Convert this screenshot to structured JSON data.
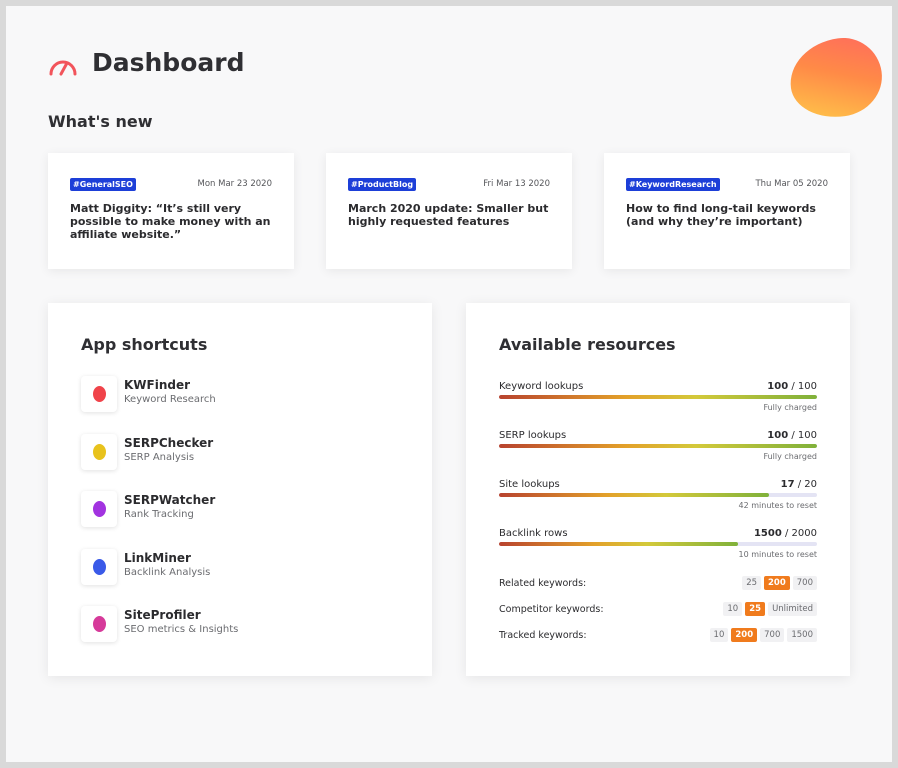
{
  "header": {
    "title": "Dashboard",
    "logo_icon": "speedometer-icon"
  },
  "whats_new": {
    "title": "What's new",
    "items": [
      {
        "tag": "#GeneralSEO",
        "date": "Mon Mar 23 2020",
        "headline": "Matt Diggity: “It’s still very possible to make money with an affiliate website.”"
      },
      {
        "tag": "#ProductBlog",
        "date": "Fri Mar 13 2020",
        "headline": "March 2020 update: Smaller but highly requested features"
      },
      {
        "tag": "#KeywordResearch",
        "date": "Thu Mar 05 2020",
        "headline": "How to find long-tail keywords (and why they’re important)"
      }
    ]
  },
  "app_shortcuts": {
    "title": "App shortcuts",
    "items": [
      {
        "name": "KWFinder",
        "desc": "Keyword Research",
        "color": "#f0434a"
      },
      {
        "name": "SERPChecker",
        "desc": "SERP Analysis",
        "color": "#e8c21c"
      },
      {
        "name": "SERPWatcher",
        "desc": "Rank Tracking",
        "color": "#a233e0"
      },
      {
        "name": "LinkMiner",
        "desc": "Backlink Analysis",
        "color": "#3a5ae8"
      },
      {
        "name": "SiteProfiler",
        "desc": "SEO metrics & Insights",
        "color": "#d63a9a"
      }
    ]
  },
  "resources": {
    "title": "Available resources",
    "items": [
      {
        "label": "Keyword lookups",
        "used": "100",
        "total": "/ 100",
        "fraction": 1.0,
        "note": "Fully charged"
      },
      {
        "label": "SERP lookups",
        "used": "100",
        "total": "/ 100",
        "fraction": 1.0,
        "note": "Fully charged"
      },
      {
        "label": "Site lookups",
        "used": "17",
        "total": "/ 20",
        "fraction": 0.85,
        "note": "42 minutes to reset"
      },
      {
        "label": "Backlink rows",
        "used": "1500",
        "total": "/ 2000",
        "fraction": 0.75,
        "note": "10 minutes to reset"
      }
    ],
    "plans": [
      {
        "label": "Related keywords:",
        "options": [
          "25",
          "200",
          "700"
        ],
        "selected": 1
      },
      {
        "label": "Competitor keywords:",
        "options": [
          "10",
          "25",
          "Unlimited"
        ],
        "selected": 1
      },
      {
        "label": "Tracked keywords:",
        "options": [
          "10",
          "200",
          "700",
          "1500"
        ],
        "selected": 1
      }
    ]
  }
}
